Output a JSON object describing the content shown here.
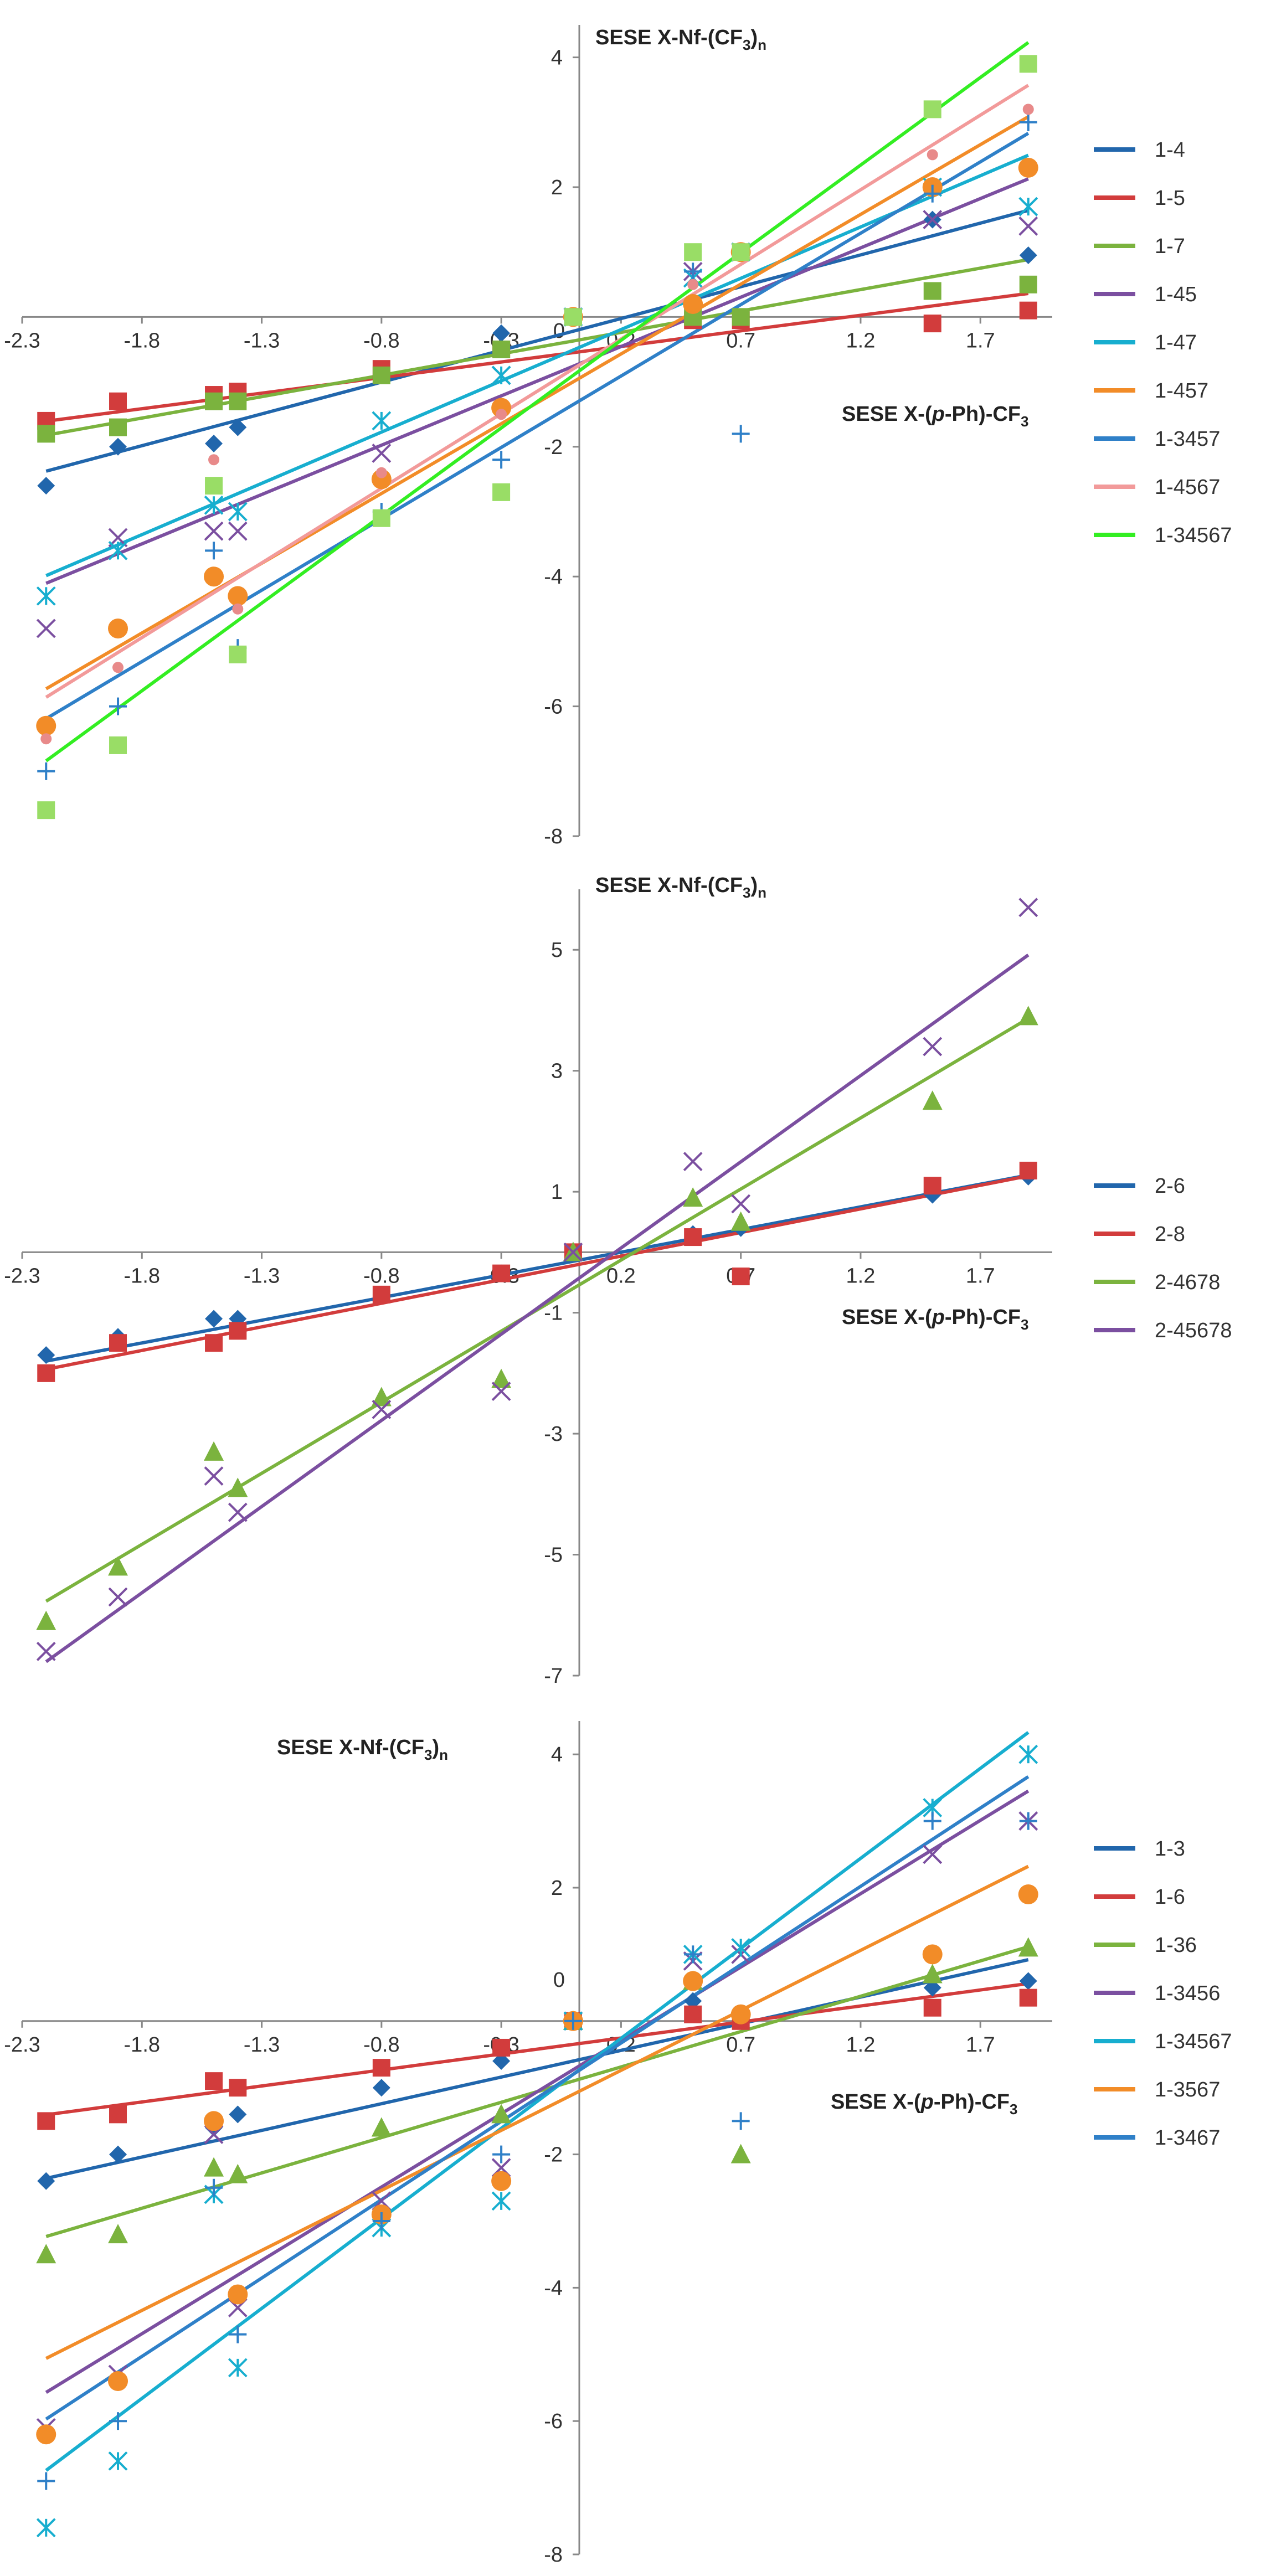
{
  "chart_data": [
    {
      "type": "scatter",
      "title": "",
      "ylabel": "SESE X-Nf-(CF3)n",
      "ylabel_base": "SESE X-Nf-(CF",
      "ylabel_sub": "3",
      "ylabel_end": ")",
      "ylabel_subn": "n",
      "xlabel": "SESE X-(p-Ph)-CF3",
      "xlabel_base": "SESE X-(",
      "xlabel_p": "p",
      "xlabel_mid": "-Ph)-CF",
      "xlabel_sub": "3",
      "xlim": [
        -2.3,
        2.0
      ],
      "ylim": [
        -8,
        4.5
      ],
      "x_ticks": [
        -2.3,
        -1.8,
        -1.3,
        -0.8,
        -0.3,
        0.2,
        0.7,
        1.2,
        1.7
      ],
      "x_tick_labels": [
        "-2.3",
        "-1.8",
        "-1.3",
        "-0.8",
        "-0.3",
        "0.2",
        "0.7",
        "1.2",
        "1.7"
      ],
      "y_ticks": [
        -8,
        -6,
        -4,
        -2,
        2,
        4
      ],
      "y_tick_labels": [
        "-8",
        "-6",
        "-4",
        "-2",
        "2",
        "4"
      ],
      "zero_label": "0",
      "legend_position": "right",
      "series": [
        {
          "name": "1-4",
          "color": "#2166AC",
          "marker": "diamond",
          "markerColor": "#2166AC",
          "fit": [
            0.98,
            -0.22
          ],
          "x": [
            -2.2,
            -1.9,
            -1.5,
            -1.4,
            -0.8,
            -0.3,
            0.0,
            0.5,
            0.7,
            1.5,
            1.9
          ],
          "y": [
            -2.6,
            -2.0,
            -1.95,
            -1.7,
            -0.9,
            -0.25,
            0.0,
            -0.05,
            0.0,
            1.5,
            0.95
          ]
        },
        {
          "name": "1-5",
          "color": "#D23C3C",
          "marker": "square",
          "markerColor": "#D23C3C",
          "fit": [
            0.48,
            -0.55
          ],
          "x": [
            -2.2,
            -1.9,
            -1.5,
            -1.4,
            -0.8,
            -0.3,
            0.0,
            0.5,
            0.7,
            1.5,
            1.9
          ],
          "y": [
            -1.6,
            -1.3,
            -1.2,
            -1.15,
            -0.8,
            -0.5,
            0.0,
            -0.05,
            -0.05,
            -0.1,
            0.1
          ]
        },
        {
          "name": "1-7",
          "color": "#7BB33E",
          "marker": "square",
          "markerColor": "#7BB33E",
          "fit": [
            0.66,
            -0.37
          ],
          "x": [
            -2.2,
            -1.9,
            -1.5,
            -1.4,
            -0.8,
            -0.3,
            0.0,
            0.5,
            0.7,
            1.5,
            1.9
          ],
          "y": [
            -1.8,
            -1.7,
            -1.3,
            -1.3,
            -0.9,
            -0.5,
            0.0,
            0.0,
            0.0,
            0.4,
            0.5
          ]
        },
        {
          "name": "1-45",
          "color": "#7B4FA0",
          "marker": "x",
          "markerColor": "#7B4FA0",
          "fit": [
            1.52,
            -0.76
          ],
          "x": [
            -2.2,
            -1.9,
            -1.5,
            -1.4,
            -0.8,
            -0.3,
            0.0,
            0.5,
            0.7,
            1.5,
            1.9
          ],
          "y": [
            -4.8,
            -3.4,
            -3.3,
            -3.3,
            -2.1,
            -0.9,
            0.0,
            0.7,
            1.0,
            1.5,
            1.4
          ]
        },
        {
          "name": "1-47",
          "color": "#17AECF",
          "marker": "asterisk",
          "markerColor": "#17AECF",
          "fit": [
            1.58,
            -0.51
          ],
          "x": [
            -2.2,
            -1.9,
            -1.5,
            -1.4,
            -0.8,
            -0.3,
            0.0,
            0.5,
            0.7,
            1.5,
            1.9
          ],
          "y": [
            -4.3,
            -3.6,
            -2.9,
            -3.0,
            -1.6,
            -0.9,
            0.0,
            0.6,
            1.0,
            2.0,
            1.7
          ]
        },
        {
          "name": "1-457",
          "color": "#F28C28",
          "marker": "circle",
          "markerColor": "#F28C28",
          "fit": [
            2.15,
            -1.0
          ],
          "x": [
            -2.2,
            -1.9,
            -1.5,
            -1.4,
            -0.8,
            -0.3,
            0.0,
            0.5,
            0.7,
            1.5,
            1.9
          ],
          "y": [
            -6.3,
            -4.8,
            -4.0,
            -4.3,
            -2.5,
            -1.4,
            0.0,
            0.2,
            1.0,
            2.0,
            2.3
          ]
        },
        {
          "name": "1-3457",
          "color": "#2F80C8",
          "marker": "plus",
          "markerColor": "#2F80C8",
          "fit": [
            2.2,
            -1.35
          ],
          "x": [
            -2.2,
            -1.9,
            -1.5,
            -1.4,
            -0.8,
            -0.3,
            0.0,
            0.5,
            0.7,
            1.5,
            1.9
          ],
          "y": [
            -7.0,
            -6.0,
            -3.6,
            -5.1,
            -3.0,
            -2.2,
            0.0,
            0.7,
            -1.8,
            1.9,
            3.0
          ]
        },
        {
          "name": "1-4567",
          "color": "#F29A9A",
          "marker": "dot",
          "markerColor": "#E88A8A",
          "fit": [
            2.3,
            -0.8
          ],
          "x": [
            -2.2,
            -1.9,
            -1.5,
            -1.4,
            -0.8,
            -0.3,
            0.0,
            0.5,
            0.7,
            1.5,
            1.9
          ],
          "y": [
            -6.5,
            -5.4,
            -2.2,
            -4.5,
            -2.4,
            -1.5,
            0.0,
            0.5,
            1.0,
            2.5,
            3.2
          ]
        },
        {
          "name": "1-34567",
          "color": "#33EE22",
          "marker": "square",
          "markerColor": "#99DD66",
          "fit": [
            2.7,
            -0.9
          ],
          "x": [
            -2.2,
            -1.9,
            -1.5,
            -1.4,
            -0.8,
            -0.3,
            0.0,
            0.5,
            0.7,
            1.5,
            1.9
          ],
          "y": [
            -7.6,
            -6.6,
            -2.6,
            -5.2,
            -3.1,
            -2.7,
            0.0,
            1.0,
            1.0,
            3.2,
            3.9
          ]
        }
      ]
    },
    {
      "type": "scatter",
      "title": "",
      "ylabel": "SESE X-Nf-(CF3)n",
      "ylabel_base": "SESE X-Nf-(CF",
      "ylabel_sub": "3",
      "ylabel_end": ")",
      "ylabel_subn": "n",
      "xlabel": "SESE X-(p-Ph)-CF3",
      "xlabel_base": "SESE X-(",
      "xlabel_p": "p",
      "xlabel_mid": "-Ph)-CF",
      "xlabel_sub": "3",
      "xlim": [
        -2.3,
        2.0
      ],
      "ylim": [
        -7,
        6
      ],
      "x_ticks": [
        -2.3,
        -1.8,
        -1.3,
        -0.8,
        -0.3,
        0.2,
        0.7,
        1.2,
        1.7
      ],
      "x_tick_labels": [
        "-2.3",
        "-1.8",
        "-1.3",
        "-0.8",
        "-0.3",
        "0.2",
        "0.7",
        "1.2",
        "1.7"
      ],
      "y_ticks": [
        -7,
        -5,
        -3,
        -1,
        1,
        3,
        5
      ],
      "y_tick_labels": [
        "-7",
        "-5",
        "-3",
        "-1",
        "1",
        "3",
        "5"
      ],
      "legend_position": "right",
      "series": [
        {
          "name": "2-6",
          "color": "#2166AC",
          "marker": "diamond",
          "markerColor": "#2166AC",
          "fit": [
            0.75,
            -0.15
          ],
          "x": [
            -2.2,
            -1.9,
            -1.5,
            -1.4,
            -0.8,
            -0.3,
            0.0,
            0.5,
            0.7,
            1.5,
            1.9
          ],
          "y": [
            -1.7,
            -1.4,
            -1.1,
            -1.1,
            -0.7,
            -0.35,
            0.0,
            0.3,
            0.4,
            0.95,
            1.25
          ]
        },
        {
          "name": "2-8",
          "color": "#D23C3C",
          "marker": "square",
          "markerColor": "#D23C3C",
          "fit": [
            0.78,
            -0.22
          ],
          "x": [
            -2.2,
            -1.9,
            -1.5,
            -1.4,
            -0.8,
            -0.3,
            0.0,
            0.5,
            0.7,
            1.5,
            1.9
          ],
          "y": [
            -2.0,
            -1.5,
            -1.5,
            -1.3,
            -0.7,
            -0.35,
            0.0,
            0.25,
            -0.4,
            1.1,
            1.35
          ]
        },
        {
          "name": "2-4678",
          "color": "#7BB33E",
          "marker": "triangle",
          "markerColor": "#7BB33E",
          "fit": [
            2.35,
            -0.6
          ],
          "x": [
            -2.2,
            -1.9,
            -1.5,
            -1.4,
            -0.8,
            -0.3,
            0.0,
            0.5,
            0.7,
            1.5,
            1.9
          ],
          "y": [
            -6.1,
            -5.2,
            -3.3,
            -3.9,
            -2.4,
            -2.1,
            0.0,
            0.9,
            0.5,
            2.5,
            3.9
          ]
        },
        {
          "name": "2-45678",
          "color": "#7B4FA0",
          "marker": "x",
          "markerColor": "#7B4FA0",
          "fit": [
            2.85,
            -0.5
          ],
          "x": [
            -2.2,
            -1.9,
            -1.5,
            -1.4,
            -0.8,
            -0.3,
            0.0,
            0.5,
            0.7,
            1.5,
            1.9
          ],
          "y": [
            -6.6,
            -5.7,
            -3.7,
            -4.3,
            -2.6,
            -2.3,
            0.0,
            1.5,
            0.8,
            3.4,
            5.7
          ]
        }
      ]
    },
    {
      "type": "scatter",
      "title": "",
      "ylabel": "SESE X-Nf-(CF3)n",
      "ylabel_base": "SESE X-Nf-(CF",
      "ylabel_sub": "3",
      "ylabel_end": ")",
      "ylabel_subn": "n",
      "xlabel": "SESE X-(p-Ph)-CF3",
      "xlabel_base": "SESE X-(",
      "xlabel_p": "p",
      "xlabel_mid": "-Ph)-CF",
      "xlabel_sub": "3",
      "xlim": [
        -2.3,
        2.0
      ],
      "ylim": [
        -8,
        4.5
      ],
      "x_ticks": [
        -2.3,
        -1.8,
        -1.3,
        -0.8,
        -0.3,
        0.2,
        0.7,
        1.2,
        1.7
      ],
      "x_tick_labels": [
        "-2.3",
        "-1.8",
        "-1.3",
        "-0.8",
        "-0.3",
        "0.2",
        "0.7",
        "1.2",
        "1.7"
      ],
      "y_ticks": [
        -8,
        -6,
        -4,
        -2,
        2,
        4
      ],
      "y_tick_labels": [
        "-8",
        "-6",
        "-4",
        "-2",
        "2",
        "4"
      ],
      "zero_label": "0",
      "legend_position": "right",
      "series": [
        {
          "name": "1-3",
          "color": "#2166AC",
          "marker": "diamond",
          "markerColor": "#2166AC",
          "fit": [
            0.8,
            -0.6
          ],
          "x": [
            -2.2,
            -1.9,
            -1.5,
            -1.4,
            -0.8,
            -0.3,
            0.0,
            0.5,
            0.7,
            1.5,
            1.9
          ],
          "y": [
            -2.4,
            -2.0,
            -1.6,
            -1.4,
            -1.0,
            -0.6,
            0.0,
            0.3,
            0.1,
            0.5,
            0.6
          ]
        },
        {
          "name": "1-6",
          "color": "#D23C3C",
          "marker": "square",
          "markerColor": "#D23C3C",
          "fit": [
            0.48,
            -0.35
          ],
          "x": [
            -2.2,
            -1.9,
            -1.5,
            -1.4,
            -0.8,
            -0.3,
            0.0,
            0.5,
            0.7,
            1.5,
            1.9
          ],
          "y": [
            -1.5,
            -1.4,
            -0.9,
            -1.0,
            -0.7,
            -0.4,
            0.0,
            0.1,
            0.0,
            0.2,
            0.35
          ]
        },
        {
          "name": "1-36",
          "color": "#7BB33E",
          "marker": "triangle",
          "markerColor": "#7BB33E",
          "fit": [
            1.06,
            -0.9
          ],
          "x": [
            -2.2,
            -1.9,
            -1.5,
            -1.4,
            -0.8,
            -0.3,
            0.0,
            0.5,
            0.7,
            1.5,
            1.9
          ],
          "y": [
            -3.5,
            -3.2,
            -2.2,
            -2.3,
            -1.6,
            -1.4,
            0.0,
            0.6,
            -2.0,
            0.7,
            1.1
          ]
        },
        {
          "name": "1-3456",
          "color": "#7B4FA0",
          "marker": "x",
          "markerColor": "#7B4FA0",
          "fit": [
            2.2,
            -0.73
          ],
          "x": [
            -2.2,
            -1.9,
            -1.5,
            -1.4,
            -0.8,
            -0.3,
            0.0,
            0.5,
            0.7,
            1.5,
            1.9
          ],
          "y": [
            -6.1,
            -5.3,
            -1.7,
            -4.3,
            -2.7,
            -2.2,
            0.0,
            0.9,
            1.0,
            2.5,
            3.0
          ]
        },
        {
          "name": "1-34567",
          "color": "#17AECF",
          "marker": "asterisk",
          "markerColor": "#17AECF",
          "fit": [
            2.7,
            -0.8
          ],
          "x": [
            -2.2,
            -1.9,
            -1.5,
            -1.4,
            -0.8,
            -0.3,
            0.0,
            0.5,
            0.7,
            1.5,
            1.9
          ],
          "y": [
            -7.6,
            -6.6,
            -2.6,
            -5.2,
            -3.1,
            -2.7,
            0.0,
            1.0,
            1.1,
            3.2,
            4.0
          ]
        },
        {
          "name": "1-3567",
          "color": "#F28C28",
          "marker": "circle",
          "markerColor": "#F28C28",
          "fit": [
            1.8,
            -1.1
          ],
          "x": [
            -2.2,
            -1.9,
            -1.5,
            -1.4,
            -0.8,
            -0.3,
            0.0,
            0.5,
            0.7,
            1.5,
            1.9
          ],
          "y": [
            -6.2,
            -5.4,
            -1.5,
            -4.1,
            -2.9,
            -2.4,
            0.0,
            0.6,
            0.1,
            1.0,
            1.9
          ]
        },
        {
          "name": "1-3467",
          "color": "#2F80C8",
          "marker": "plus",
          "markerColor": "#2F80C8",
          "fit": [
            2.35,
            -0.8
          ],
          "x": [
            -2.2,
            -1.9,
            -1.5,
            -1.4,
            -0.8,
            -0.3,
            0.0,
            0.5,
            0.7,
            1.5,
            1.9
          ],
          "y": [
            -6.9,
            -6.0,
            -2.5,
            -4.7,
            -3.0,
            -2.0,
            0.0,
            1.0,
            -1.5,
            3.0,
            3.0
          ]
        }
      ]
    }
  ]
}
